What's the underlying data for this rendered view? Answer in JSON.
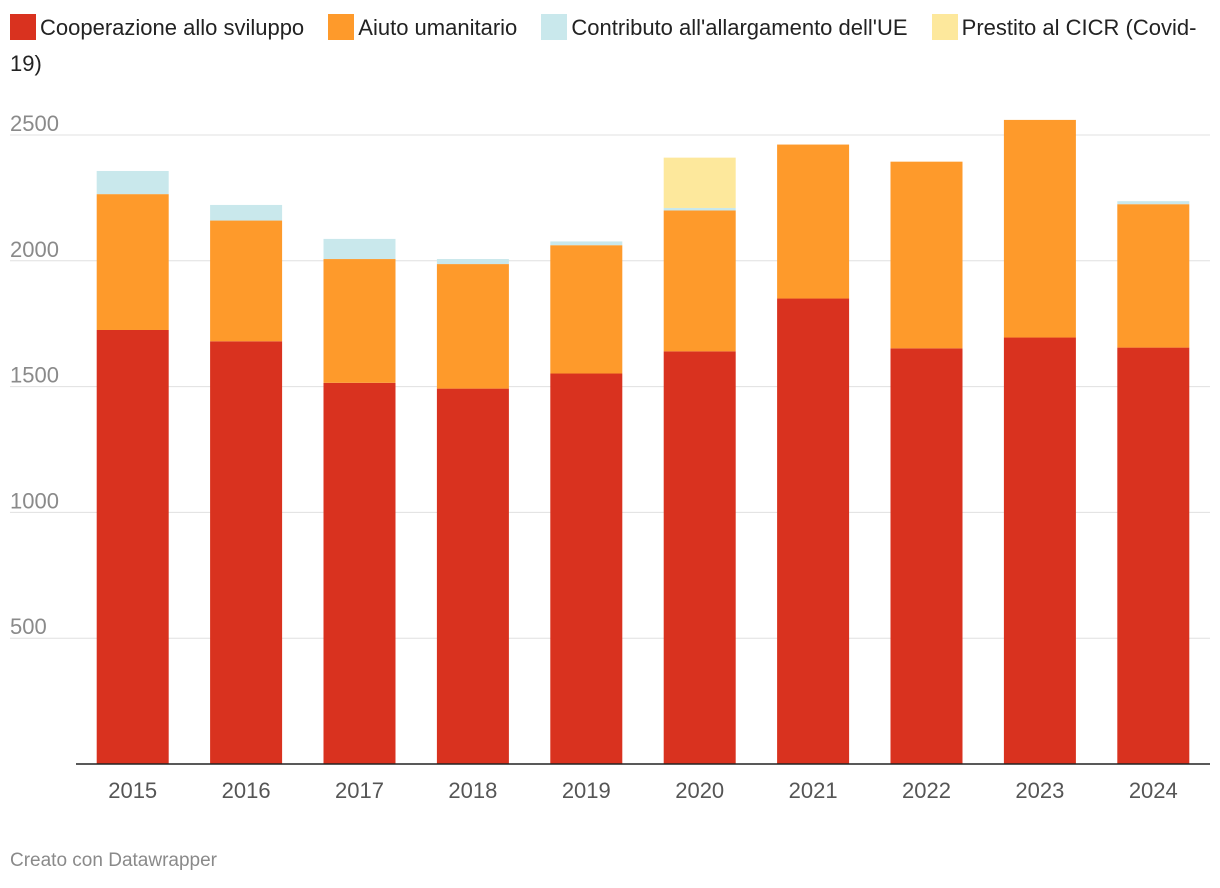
{
  "chart_data": {
    "type": "bar",
    "stacked": true,
    "categories": [
      "2015",
      "2016",
      "2017",
      "2018",
      "2019",
      "2020",
      "2021",
      "2022",
      "2023",
      "2024"
    ],
    "series": [
      {
        "name": "Cooperazione allo sviluppo",
        "color": "#d9321f",
        "values": [
          1725,
          1680,
          1515,
          1492,
          1552,
          1640,
          1850,
          1652,
          1695,
          1655
        ]
      },
      {
        "name": "Aiuto umanitario",
        "color": "#fe9a2b",
        "values": [
          540,
          480,
          492,
          495,
          510,
          560,
          612,
          742,
          865,
          570
        ]
      },
      {
        "name": "Contributo all'allargamento dell'UE",
        "color": "#c9e8ec",
        "values": [
          92,
          62,
          80,
          20,
          15,
          10,
          0,
          0,
          0,
          12
        ]
      },
      {
        "name": "Prestito al CICR (Covid-19)",
        "color": "#fde89c",
        "values": [
          0,
          0,
          0,
          0,
          0,
          200,
          0,
          0,
          0,
          0
        ]
      }
    ],
    "yticks": [
      "500",
      "1000",
      "1500",
      "2000",
      "2500"
    ],
    "ylim": [
      0,
      2600
    ],
    "title": "",
    "xlabel": "",
    "ylabel": "",
    "grid": true,
    "legend_position": "top"
  },
  "footer": {
    "credit": "Creato con Datawrapper"
  }
}
